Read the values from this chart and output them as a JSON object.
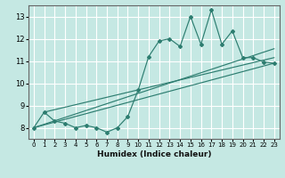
{
  "xlabel": "Humidex (Indice chaleur)",
  "background_color": "#c5e8e3",
  "line_color": "#2d7d70",
  "grid_color": "#ffffff",
  "x_data": [
    0,
    1,
    2,
    3,
    4,
    5,
    6,
    7,
    8,
    9,
    10,
    11,
    12,
    13,
    14,
    15,
    16,
    17,
    18,
    19,
    20,
    21,
    22,
    23
  ],
  "y_main": [
    8.0,
    8.7,
    8.3,
    8.2,
    8.0,
    8.1,
    8.0,
    7.8,
    8.0,
    8.5,
    9.7,
    11.2,
    11.9,
    12.0,
    11.65,
    13.0,
    11.75,
    13.3,
    11.75,
    12.35,
    11.15,
    11.15,
    10.95,
    10.9
  ],
  "trend_lines": [
    {
      "x": [
        0,
        23
      ],
      "y": [
        8.0,
        10.9
      ]
    },
    {
      "x": [
        0,
        23
      ],
      "y": [
        8.0,
        11.55
      ]
    },
    {
      "x": [
        1,
        23
      ],
      "y": [
        8.7,
        11.15
      ]
    }
  ],
  "ylim": [
    7.5,
    13.5
  ],
  "xlim": [
    -0.5,
    23.5
  ],
  "yticks": [
    8,
    9,
    10,
    11,
    12,
    13
  ],
  "xticks": [
    0,
    1,
    2,
    3,
    4,
    5,
    6,
    7,
    8,
    9,
    10,
    11,
    12,
    13,
    14,
    15,
    16,
    17,
    18,
    19,
    20,
    21,
    22,
    23
  ],
  "figsize": [
    3.2,
    2.0
  ],
  "dpi": 100
}
